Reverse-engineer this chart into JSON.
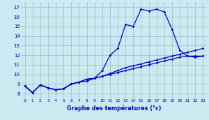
{
  "xlabel": "Graphe des températures (°c)",
  "ylim": [
    7.5,
    17.5
  ],
  "xlim": [
    -0.5,
    23.5
  ],
  "yticks": [
    8,
    9,
    10,
    11,
    12,
    13,
    14,
    15,
    16,
    17
  ],
  "xticks": [
    0,
    1,
    2,
    3,
    4,
    5,
    6,
    7,
    8,
    9,
    10,
    11,
    12,
    13,
    14,
    15,
    16,
    17,
    18,
    19,
    20,
    21,
    22,
    23
  ],
  "xtick_labels": [
    "0",
    "1",
    "2",
    "3",
    "4",
    "5",
    "6",
    "7",
    "8",
    "9",
    "10",
    "11",
    "12",
    "13",
    "14",
    "15",
    "16",
    "17",
    "18",
    "19",
    "20",
    "21",
    "22",
    "23"
  ],
  "line_color": "#0000cc",
  "marker": "D",
  "markersize": 1.8,
  "linewidth": 0.9,
  "background_color": "#c8eaf0",
  "grid_color": "#a0b8cc",
  "line1_x": [
    0,
    1,
    2,
    3,
    4,
    5,
    6,
    7,
    8,
    9,
    10,
    11,
    12,
    13,
    14,
    15,
    16,
    17,
    18,
    19,
    20,
    21,
    22,
    23
  ],
  "line1_y": [
    8.8,
    8.1,
    8.9,
    8.6,
    8.4,
    8.5,
    9.0,
    9.2,
    9.3,
    9.6,
    10.4,
    12.0,
    12.7,
    15.2,
    15.0,
    16.8,
    16.6,
    16.8,
    16.5,
    14.7,
    12.5,
    11.9,
    11.8,
    11.9
  ],
  "line2_x": [
    0,
    1,
    2,
    3,
    4,
    5,
    6,
    7,
    8,
    9,
    10,
    11,
    12,
    13,
    14,
    15,
    16,
    17,
    18,
    19,
    20,
    21,
    22,
    23
  ],
  "line2_y": [
    8.8,
    8.1,
    8.9,
    8.6,
    8.4,
    8.5,
    9.0,
    9.2,
    9.5,
    9.6,
    9.8,
    10.0,
    10.2,
    10.4,
    10.6,
    10.8,
    11.0,
    11.2,
    11.4,
    11.6,
    11.8,
    11.9,
    11.9,
    11.9
  ],
  "line3_x": [
    0,
    1,
    2,
    3,
    4,
    5,
    6,
    7,
    8,
    9,
    10,
    11,
    12,
    13,
    14,
    15,
    16,
    17,
    18,
    19,
    20,
    21,
    22,
    23
  ],
  "line3_y": [
    8.8,
    8.1,
    8.9,
    8.6,
    8.4,
    8.5,
    9.0,
    9.2,
    9.5,
    9.6,
    9.8,
    10.1,
    10.4,
    10.7,
    10.9,
    11.1,
    11.3,
    11.5,
    11.7,
    11.9,
    12.1,
    12.3,
    12.5,
    12.7
  ]
}
